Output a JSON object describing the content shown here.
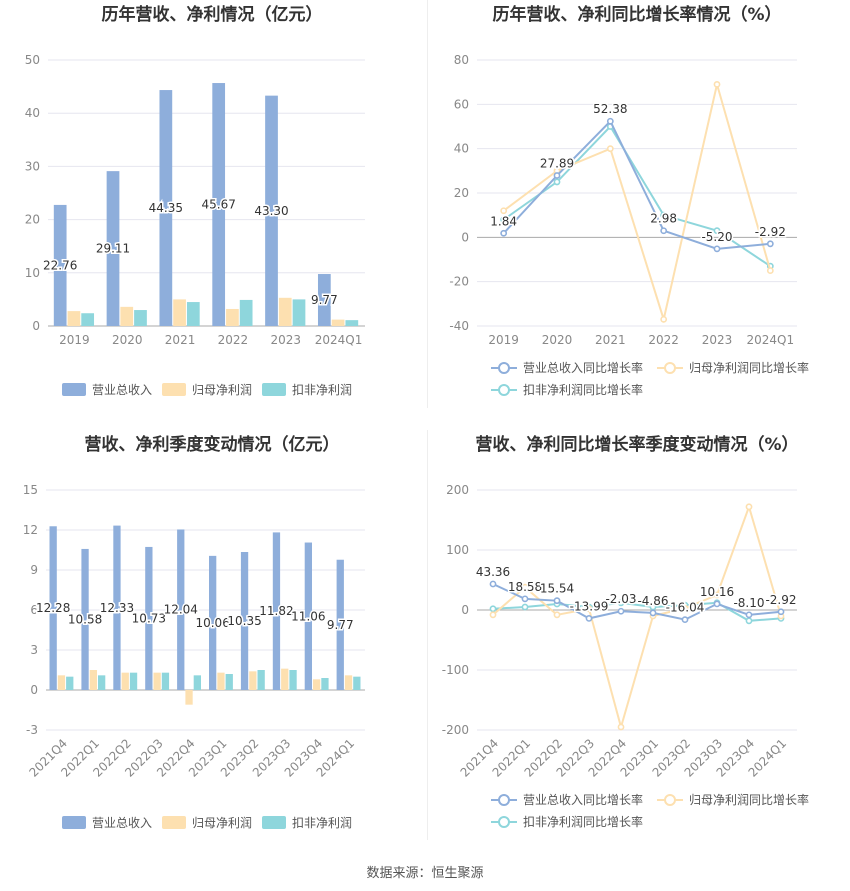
{
  "footer": {
    "source": "数据来源：恒生聚源"
  },
  "colors": {
    "blue": "#8eaedb",
    "orange": "#fde0b0",
    "teal": "#8ed6dc"
  },
  "chart_data": [
    {
      "type": "bar",
      "title": "历年营收、净利情况（亿元）",
      "categories": [
        "2019",
        "2020",
        "2021",
        "2022",
        "2023",
        "2024Q1"
      ],
      "ylim": [
        0,
        50
      ],
      "yticks": [
        0,
        10,
        20,
        30,
        40,
        50
      ],
      "legend_position": "bottom",
      "series": [
        {
          "name": "营业总收入",
          "color": "#8eaedb",
          "values": [
            22.76,
            29.11,
            44.35,
            45.67,
            43.3,
            9.77
          ],
          "labels": [
            "22.76",
            "29.11",
            "44.35",
            "45.67",
            "43.30",
            "9.77"
          ]
        },
        {
          "name": "归母净利润",
          "color": "#fde0b0",
          "values": [
            2.8,
            3.6,
            5.0,
            3.2,
            5.3,
            1.2
          ]
        },
        {
          "name": "扣非净利润",
          "color": "#8ed6dc",
          "values": [
            2.4,
            3.0,
            4.5,
            4.9,
            5.0,
            1.1
          ]
        }
      ]
    },
    {
      "type": "line",
      "title": "历年营收、净利同比增长率情况（%）",
      "categories": [
        "2019",
        "2020",
        "2021",
        "2022",
        "2023",
        "2024Q1"
      ],
      "ylim": [
        -40,
        80
      ],
      "yticks": [
        -40,
        -20,
        0,
        20,
        40,
        60,
        80
      ],
      "legend_position": "bottom",
      "series": [
        {
          "name": "营业总收入同比增长率",
          "color": "#8eaedb",
          "values": [
            1.84,
            27.89,
            52.38,
            2.98,
            -5.2,
            -2.92
          ],
          "labels": [
            "1.84",
            "27.89",
            "52.38",
            "2.98",
            "-5.20",
            "-2.92"
          ]
        },
        {
          "name": "归母净利润同比增长率",
          "color": "#fde0b0",
          "values": [
            12,
            30,
            40,
            -37,
            69,
            -15
          ]
        },
        {
          "name": "扣非净利润同比增长率",
          "color": "#8ed6dc",
          "values": [
            8,
            25,
            50,
            10,
            3,
            -13
          ]
        }
      ]
    },
    {
      "type": "bar",
      "title": "营收、净利季度变动情况（亿元）",
      "categories": [
        "2021Q4",
        "2022Q1",
        "2022Q2",
        "2022Q3",
        "2022Q4",
        "2023Q1",
        "2023Q2",
        "2023Q3",
        "2023Q4",
        "2024Q1"
      ],
      "ylim": [
        -3,
        15
      ],
      "yticks": [
        -3,
        0,
        3,
        6,
        9,
        12,
        15
      ],
      "legend_position": "bottom",
      "series": [
        {
          "name": "营业总收入",
          "color": "#8eaedb",
          "values": [
            12.28,
            10.58,
            12.33,
            10.73,
            12.04,
            10.06,
            10.35,
            11.82,
            11.06,
            9.77
          ],
          "labels": [
            "12.28",
            "10.58",
            "12.33",
            "10.73",
            "12.04",
            "10.06",
            "10.35",
            "11.82",
            "11.06",
            "9.77"
          ]
        },
        {
          "name": "归母净利润",
          "color": "#fde0b0",
          "values": [
            1.1,
            1.5,
            1.3,
            1.3,
            -1.1,
            1.3,
            1.4,
            1.6,
            0.8,
            1.1
          ]
        },
        {
          "name": "扣非净利润",
          "color": "#8ed6dc",
          "values": [
            1.0,
            1.1,
            1.3,
            1.3,
            1.1,
            1.2,
            1.5,
            1.5,
            0.9,
            1.0
          ]
        }
      ]
    },
    {
      "type": "line",
      "title": "营收、净利同比增长率季度变动情况（%）",
      "categories": [
        "2021Q4",
        "2022Q1",
        "2022Q2",
        "2022Q3",
        "2022Q4",
        "2023Q1",
        "2023Q2",
        "2023Q3",
        "2023Q4",
        "2024Q1"
      ],
      "ylim": [
        -200,
        200
      ],
      "yticks": [
        -200,
        -100,
        0,
        100,
        200
      ],
      "legend_position": "bottom",
      "series": [
        {
          "name": "营业总收入同比增长率",
          "color": "#8eaedb",
          "values": [
            43.36,
            18.58,
            15.54,
            -13.99,
            -2.03,
            -4.86,
            -16.04,
            10.16,
            -8.1,
            -2.92
          ],
          "labels": [
            "43.36",
            "18.58",
            "15.54",
            "-13.99",
            "-2.03",
            "-4.86",
            "-16.04",
            "10.16",
            "-8.10",
            "-2.92"
          ]
        },
        {
          "name": "归母净利润同比增长率",
          "color": "#fde0b0",
          "values": [
            -8,
            38,
            -8,
            2,
            -195,
            -10,
            3,
            25,
            172,
            -10
          ]
        },
        {
          "name": "扣非净利润同比增长率",
          "color": "#8ed6dc",
          "values": [
            2,
            5,
            10,
            5,
            12,
            5,
            8,
            12,
            -18,
            -14
          ]
        }
      ]
    }
  ]
}
